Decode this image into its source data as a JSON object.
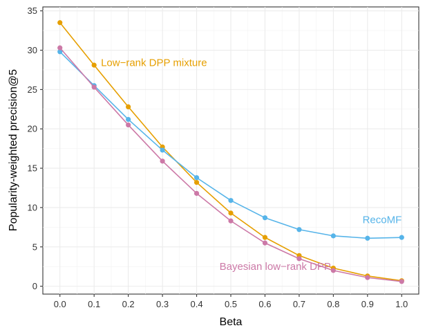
{
  "chart_data": {
    "type": "line",
    "xlabel": "Beta",
    "ylabel": "Popularity-weighted precision@5",
    "xlim": [
      -0.05,
      1.05
    ],
    "ylim": [
      -1,
      35.5
    ],
    "x": [
      0.0,
      0.1,
      0.2,
      0.3,
      0.4,
      0.5,
      0.6,
      0.7,
      0.8,
      0.9,
      1.0
    ],
    "xticks": [
      0.0,
      0.1,
      0.2,
      0.3,
      0.4,
      0.5,
      0.6,
      0.7,
      0.8,
      0.9,
      1.0
    ],
    "xtick_labels": [
      "0.0",
      "0.1",
      "0.2",
      "0.3",
      "0.4",
      "0.5",
      "0.6",
      "0.7",
      "0.8",
      "0.9",
      "1.0"
    ],
    "yticks": [
      0,
      5,
      10,
      15,
      20,
      25,
      30,
      35
    ],
    "ytick_labels": [
      "0",
      "5",
      "10",
      "15",
      "20",
      "25",
      "30",
      "35"
    ],
    "grid": true,
    "legend": "none (series labeled directly on chart)",
    "series": [
      {
        "name": "Low−rank DPP mixture",
        "color": "#E69F00",
        "values": [
          33.5,
          28.1,
          22.8,
          17.7,
          13.2,
          9.3,
          6.2,
          3.9,
          2.3,
          1.3,
          0.7
        ]
      },
      {
        "name": "RecoMF",
        "color": "#56B4E9",
        "values": [
          29.8,
          25.5,
          21.2,
          17.3,
          13.8,
          10.9,
          8.7,
          7.2,
          6.4,
          6.1,
          6.2
        ]
      },
      {
        "name": "Bayesian low−rank DPP",
        "color": "#CC79A7",
        "values": [
          30.3,
          25.3,
          20.5,
          15.9,
          11.8,
          8.3,
          5.5,
          3.5,
          2.0,
          1.1,
          0.6
        ]
      }
    ]
  }
}
